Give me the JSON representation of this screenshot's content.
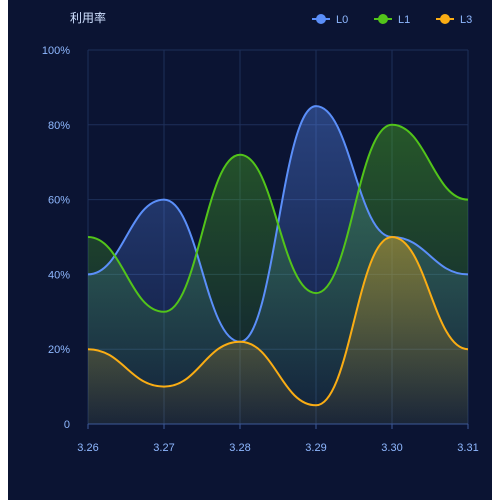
{
  "chart_data": {
    "type": "area",
    "title": "",
    "ylabel": "利用率",
    "xlabel": "",
    "categories": [
      "3.26",
      "3.27",
      "3.28",
      "3.29",
      "3.30",
      "3.31"
    ],
    "ylim": [
      0,
      100
    ],
    "y_ticks": [
      0,
      20,
      40,
      60,
      80,
      100
    ],
    "y_tick_labels": [
      "0",
      "20%",
      "40%",
      "60%",
      "80%",
      "100%"
    ],
    "grid": true,
    "legend_position": "top-right",
    "series": [
      {
        "name": "L0",
        "values": [
          40,
          60,
          22,
          85,
          50,
          40
        ],
        "color": "#5b8ff9"
      },
      {
        "name": "L1",
        "values": [
          50,
          30,
          72,
          35,
          80,
          60
        ],
        "color": "#52c41a"
      },
      {
        "name": "L3",
        "values": [
          20,
          10,
          22,
          5,
          50,
          20
        ],
        "color": "#faad14"
      }
    ]
  },
  "colors": {
    "background": "#0b1433",
    "axis_label": "#8fb8ff",
    "grid": "#1e2f5a"
  }
}
